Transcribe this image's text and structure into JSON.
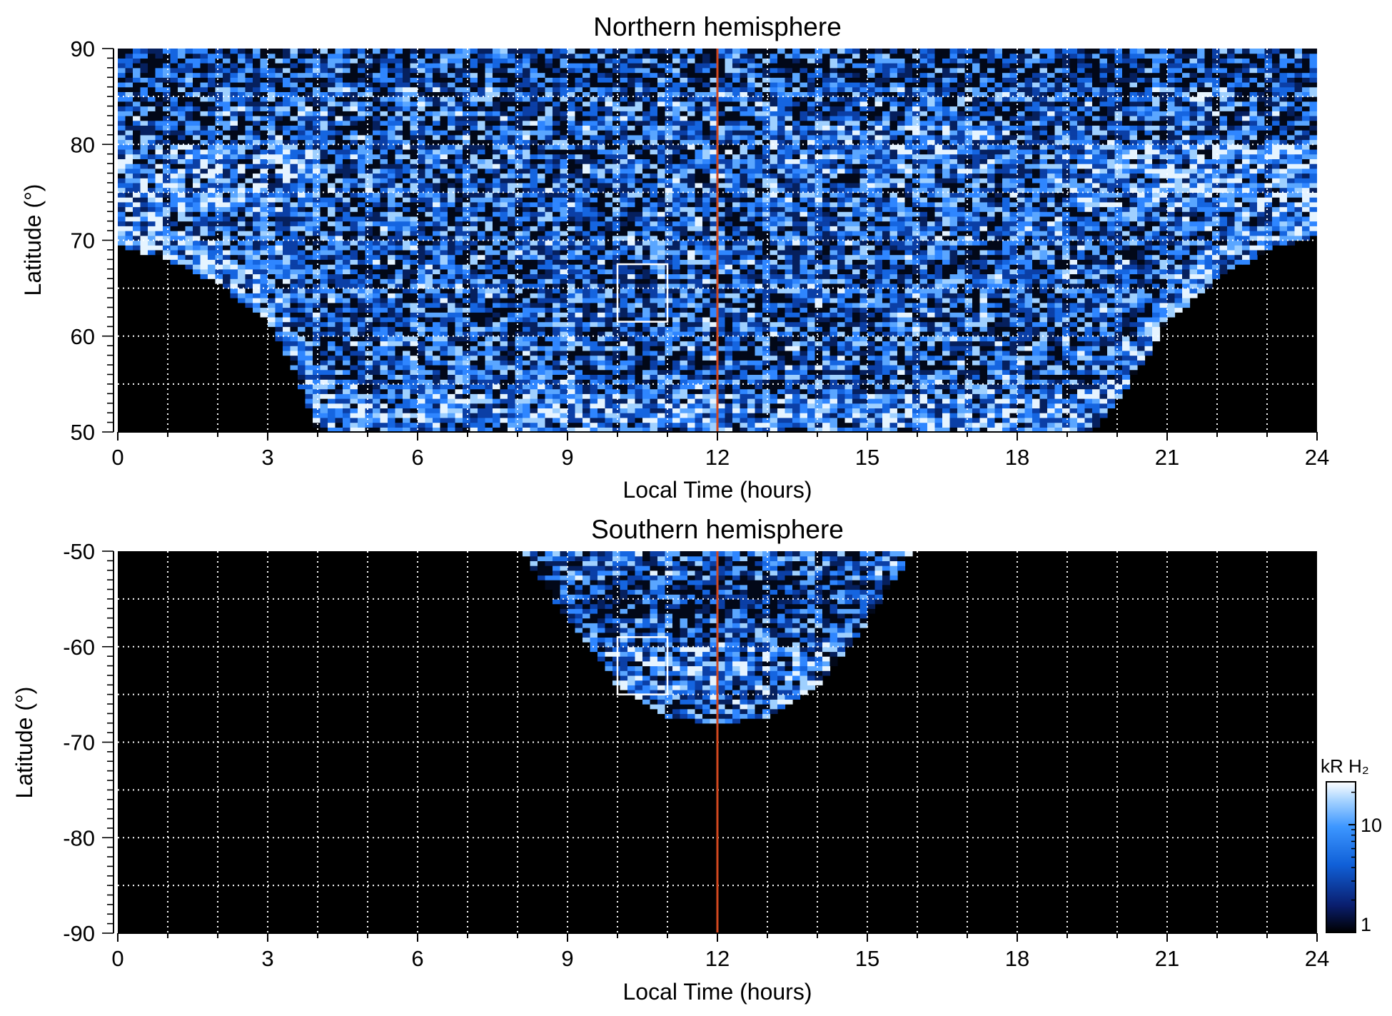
{
  "chart_data": [
    {
      "type": "heatmap",
      "title": "Northern hemisphere",
      "xlabel": "Local Time (hours)",
      "ylabel": "Latitude (°)",
      "xlim": [
        0,
        24
      ],
      "ylim": [
        50,
        90
      ],
      "xticks": [
        "0",
        "3",
        "6",
        "9",
        "12",
        "15",
        "18",
        "21",
        "24"
      ],
      "yticks": [
        "50",
        "60",
        "70",
        "80",
        "90"
      ],
      "grid": "dotted white, every 1 h local time and every 5° latitude",
      "reference_line": {
        "x": 12,
        "color": "#d2481f"
      },
      "box": {
        "x": [
          10,
          11
        ],
        "y": [
          61.5,
          67.5
        ]
      },
      "coverage_boundary": [
        {
          "lt": 0,
          "lat": 69.5
        },
        {
          "lt": 1,
          "lat": 68
        },
        {
          "lt": 2,
          "lat": 65.5
        },
        {
          "lt": 3,
          "lat": 61.5
        },
        {
          "lt": 3.5,
          "lat": 57
        },
        {
          "lt": 4,
          "lat": 50
        },
        {
          "lt": 19.5,
          "lat": 50
        },
        {
          "lt": 20.5,
          "lat": 57
        },
        {
          "lt": 21,
          "lat": 61.5
        },
        {
          "lt": 22,
          "lat": 66
        },
        {
          "lt": 23,
          "lat": 69
        },
        {
          "lt": 24,
          "lat": 70.5
        }
      ]
    },
    {
      "type": "heatmap",
      "title": "Southern hemisphere",
      "xlabel": "Local Time (hours)",
      "ylabel": "Latitude (°)",
      "xlim": [
        0,
        24
      ],
      "ylim": [
        -90,
        -50
      ],
      "xticks": [
        "0",
        "3",
        "6",
        "9",
        "12",
        "15",
        "18",
        "21",
        "24"
      ],
      "yticks": [
        "-50",
        "-60",
        "-70",
        "-80",
        "-90"
      ],
      "grid": "dotted white, every 1 h local time and every 5° latitude",
      "reference_line": {
        "x": 12,
        "color": "#d2481f"
      },
      "box": {
        "x": [
          10,
          11
        ],
        "y": [
          -65,
          -59
        ]
      },
      "coverage_boundary": [
        {
          "lt": 8.1,
          "lat": -50
        },
        {
          "lt": 8.6,
          "lat": -54
        },
        {
          "lt": 9.3,
          "lat": -59
        },
        {
          "lt": 10,
          "lat": -64
        },
        {
          "lt": 11,
          "lat": -67.5
        },
        {
          "lt": 12,
          "lat": -68
        },
        {
          "lt": 13,
          "lat": -67.5
        },
        {
          "lt": 14,
          "lat": -64
        },
        {
          "lt": 14.8,
          "lat": -59
        },
        {
          "lt": 15.4,
          "lat": -54
        },
        {
          "lt": 15.9,
          "lat": -50
        }
      ]
    }
  ],
  "colorbar": {
    "title": "kR H₂",
    "scale": "log",
    "range": [
      1,
      25
    ],
    "tick_labels": [
      "10",
      "1"
    ],
    "tick_values": [
      10,
      1
    ],
    "colors": [
      "#000000",
      "#0a1e6e",
      "#1060d8",
      "#3c96ff",
      "#a8d4ff",
      "#ffffff"
    ]
  },
  "colors": {
    "reference_line": "#d2481f",
    "background": "#000000",
    "grid": "#ffffff"
  }
}
